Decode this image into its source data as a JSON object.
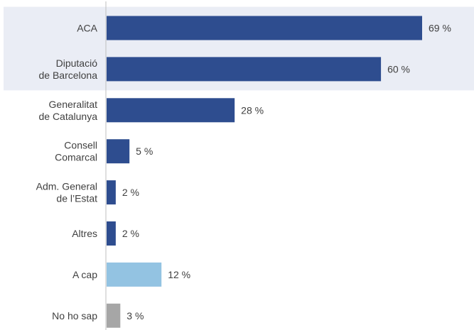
{
  "chart_data": {
    "type": "bar",
    "orientation": "horizontal",
    "categories": [
      [
        "ACA"
      ],
      [
        "Diputació",
        "de Barcelona"
      ],
      [
        "Generalitat",
        "de Catalunya"
      ],
      [
        "Consell",
        "Comarcal"
      ],
      [
        "Adm. General",
        "de l’Estat"
      ],
      [
        "Altres"
      ],
      [
        "A cap"
      ],
      [
        "No ho sap"
      ]
    ],
    "values": [
      69,
      60,
      28,
      5,
      2,
      2,
      12,
      3
    ],
    "value_labels": [
      "69 %",
      "60 %",
      "28 %",
      "5 %",
      "2 %",
      "2 %",
      "12 %",
      "3 %"
    ],
    "xlim": [
      0,
      100
    ],
    "highlighted_categories": [
      0,
      1
    ],
    "colors": {
      "primary": "#2e4d8f",
      "none": "#93c3e2",
      "unknown": "#a6a6a6",
      "highlight_band": "#eaedf5",
      "axis": "#bfbfbf",
      "text": "#404040"
    },
    "bar_colors": [
      "primary",
      "primary",
      "primary",
      "primary",
      "primary",
      "primary",
      "none",
      "unknown"
    ],
    "grid": false,
    "legend": "none",
    "title": "",
    "xlabel": "",
    "ylabel": ""
  }
}
